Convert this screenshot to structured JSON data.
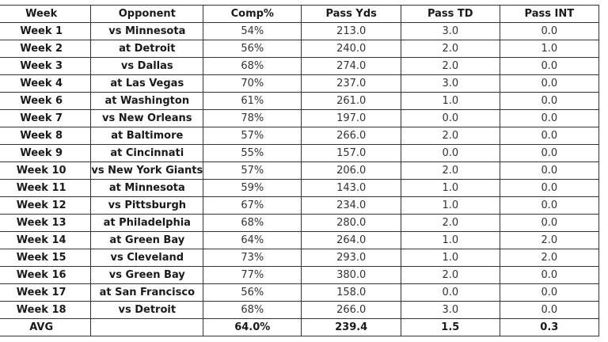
{
  "table": {
    "headers": [
      "Week",
      "Opponent",
      "Comp%",
      "Pass Yds",
      "Pass TD",
      "Pass INT"
    ],
    "rows": [
      [
        "Week 1",
        "vs Minnesota",
        "54%",
        "213.0",
        "3.0",
        "0.0"
      ],
      [
        "Week 2",
        "at Detroit",
        "56%",
        "240.0",
        "2.0",
        "1.0"
      ],
      [
        "Week 3",
        "vs Dallas",
        "68%",
        "274.0",
        "2.0",
        "0.0"
      ],
      [
        "Week 4",
        "at Las Vegas",
        "70%",
        "237.0",
        "3.0",
        "0.0"
      ],
      [
        "Week 6",
        "at Washington",
        "61%",
        "261.0",
        "1.0",
        "0.0"
      ],
      [
        "Week 7",
        "vs New Orleans",
        "78%",
        "197.0",
        "0.0",
        "0.0"
      ],
      [
        "Week 8",
        "at Baltimore",
        "57%",
        "266.0",
        "2.0",
        "0.0"
      ],
      [
        "Week 9",
        "at Cincinnati",
        "55%",
        "157.0",
        "0.0",
        "0.0"
      ],
      [
        "Week 10",
        "vs New York Giants",
        "57%",
        "206.0",
        "2.0",
        "0.0"
      ],
      [
        "Week 11",
        "at Minnesota",
        "59%",
        "143.0",
        "1.0",
        "0.0"
      ],
      [
        "Week 12",
        "vs Pittsburgh",
        "67%",
        "234.0",
        "1.0",
        "0.0"
      ],
      [
        "Week 13",
        "at Philadelphia",
        "68%",
        "280.0",
        "2.0",
        "0.0"
      ],
      [
        "Week 14",
        "at Green Bay",
        "64%",
        "264.0",
        "1.0",
        "2.0"
      ],
      [
        "Week 15",
        "vs Cleveland",
        "73%",
        "293.0",
        "1.0",
        "2.0"
      ],
      [
        "Week 16",
        "vs Green Bay",
        "77%",
        "380.0",
        "2.0",
        "0.0"
      ],
      [
        "Week 17",
        "at San Francisco",
        "56%",
        "158.0",
        "0.0",
        "0.0"
      ],
      [
        "Week 18",
        "vs Detroit",
        "68%",
        "266.0",
        "3.0",
        "0.0"
      ]
    ],
    "footer": [
      "AVG",
      "",
      "64.0%",
      "239.4",
      "1.5",
      "0.3"
    ]
  }
}
